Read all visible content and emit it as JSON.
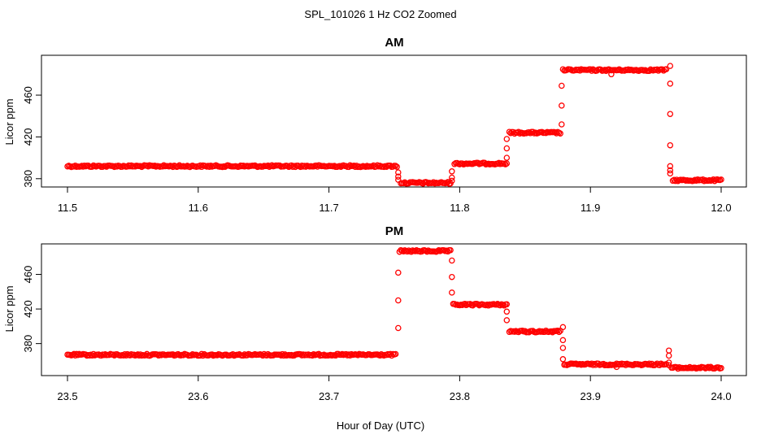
{
  "chart_data": {
    "type": "scatter",
    "title": "SPL_101026  1 Hz CO2 Zoomed",
    "xlabel": "Hour of Day (UTC)",
    "marker": "open circle",
    "color": "#ff0000",
    "panels": [
      {
        "title": "AM",
        "ylabel": "Licor ppm",
        "xlim": [
          11.5,
          12.0
        ],
        "ylim": [
          374,
          490
        ],
        "xticks": [
          "11.5",
          "11.6",
          "11.7",
          "11.8",
          "11.9",
          "12.0"
        ],
        "yticks": [
          "380",
          "420",
          "460"
        ],
        "segments": [
          {
            "x0": 11.5,
            "x1": 11.752,
            "y": 392
          },
          {
            "x0": 11.755,
            "x1": 11.793,
            "y": 376
          },
          {
            "x0": 11.796,
            "x1": 11.836,
            "y": 394.5
          },
          {
            "x0": 11.838,
            "x1": 11.877,
            "y": 424
          },
          {
            "x0": 11.879,
            "x1": 11.958,
            "y": 484
          },
          {
            "x0": 11.963,
            "x1": 12.0,
            "y": 378.5
          }
        ],
        "transitions": [
          {
            "x": 11.753,
            "y": [
              386,
              382,
              379
            ]
          },
          {
            "x": 11.794,
            "y": [
              378,
              381,
              387
            ]
          },
          {
            "x": 11.836,
            "y": [
              400,
              409,
              418
            ]
          },
          {
            "x": 11.878,
            "y": [
              432,
              450,
              469
            ]
          },
          {
            "x": 11.961,
            "y": [
              488,
              471,
              442,
              412,
              392,
              388,
              385
            ]
          },
          {
            "x": 11.916,
            "y": [
              480
            ]
          }
        ]
      },
      {
        "title": "PM",
        "ylabel": "Licor ppm",
        "xlim": [
          23.5,
          24.0
        ],
        "ylim": [
          343,
          492
        ],
        "xticks": [
          "23.5",
          "23.6",
          "23.7",
          "23.8",
          "23.9",
          "24.0"
        ],
        "yticks": [
          "380",
          "420",
          "460"
        ],
        "segments": [
          {
            "x0": 23.5,
            "x1": 23.751,
            "y": 367
          },
          {
            "x0": 23.754,
            "x1": 23.793,
            "y": 487
          },
          {
            "x0": 23.795,
            "x1": 23.836,
            "y": 425
          },
          {
            "x0": 23.838,
            "x1": 23.877,
            "y": 394
          },
          {
            "x0": 23.88,
            "x1": 23.958,
            "y": 356
          },
          {
            "x0": 23.962,
            "x1": 24.0,
            "y": 352
          }
        ],
        "transitions": [
          {
            "x": 23.753,
            "y": [
              398,
              430,
              462
            ]
          },
          {
            "x": 23.794,
            "y": [
              476,
              457,
              439
            ]
          },
          {
            "x": 23.836,
            "y": [
              417,
              407
            ]
          },
          {
            "x": 23.879,
            "y": [
              399,
              384,
              375,
              362
            ]
          },
          {
            "x": 23.96,
            "y": [
              372,
              366,
              358,
              355
            ]
          },
          {
            "x": 23.92,
            "y": [
              353
            ]
          }
        ]
      }
    ]
  }
}
